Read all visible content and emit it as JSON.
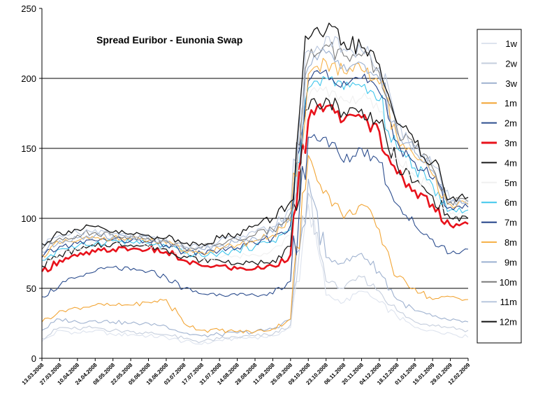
{
  "chart_data": {
    "type": "line",
    "title": "Spread Euribor - Eunonia Swap",
    "xlabel": "",
    "ylabel": "",
    "ylim": [
      0,
      250
    ],
    "y_ticks": [
      0,
      50,
      100,
      150,
      200,
      250
    ],
    "grid": "horizontal lines at 50, 100, 150, 200",
    "legend_position": "right",
    "x_tick_labels": [
      "13.03.2008",
      "27.03.2008",
      "10.04.2008",
      "24.04.2008",
      "08.05.2008",
      "22.05.2008",
      "05.06.2008",
      "19.06.2008",
      "03.07.2008",
      "17.07.2008",
      "31.07.2008",
      "14.08.2008",
      "28.08.2008",
      "11.09.2008",
      "25.09.2008",
      "09.10.2008",
      "23.10.2008",
      "06.11.2008",
      "20.11.2008",
      "04.12.2008",
      "18.12.2008",
      "01.01.2009",
      "15.01.2009",
      "29.01.2009",
      "12.02.2009"
    ],
    "x": [
      0,
      1,
      2,
      3,
      4,
      5,
      6,
      7,
      8,
      9,
      10,
      11,
      12,
      13,
      14,
      15,
      16,
      17,
      18,
      19,
      20,
      21,
      22,
      23,
      24
    ],
    "series": [
      {
        "name": "1w",
        "color": "#dde3ee",
        "values": [
          12,
          20,
          18,
          20,
          17,
          17,
          16,
          15,
          12,
          10,
          13,
          14,
          15,
          16,
          22,
          110,
          45,
          40,
          48,
          40,
          30,
          22,
          20,
          18,
          15
        ]
      },
      {
        "name": "2w",
        "color": "#c5cedd",
        "values": [
          14,
          22,
          21,
          22,
          20,
          19,
          18,
          17,
          14,
          12,
          14,
          15,
          16,
          17,
          24,
          118,
          55,
          50,
          58,
          48,
          34,
          26,
          24,
          22,
          20
        ]
      },
      {
        "name": "3w",
        "color": "#9eb1cf",
        "values": [
          20,
          28,
          26,
          27,
          26,
          25,
          25,
          23,
          18,
          16,
          17,
          18,
          19,
          21,
          28,
          128,
          72,
          68,
          75,
          62,
          42,
          34,
          30,
          27,
          26
        ]
      },
      {
        "name": "1m",
        "color": "#f2a535",
        "values": [
          26,
          34,
          36,
          38,
          38,
          38,
          40,
          42,
          25,
          20,
          20,
          19,
          19,
          21,
          28,
          145,
          120,
          100,
          110,
          92,
          58,
          50,
          42,
          44,
          42
        ]
      },
      {
        "name": "2m",
        "color": "#2c4d8e",
        "values": [
          44,
          52,
          58,
          62,
          65,
          63,
          62,
          58,
          50,
          46,
          46,
          45,
          45,
          46,
          55,
          158,
          158,
          140,
          150,
          140,
          110,
          95,
          85,
          75,
          78
        ]
      },
      {
        "name": "3m",
        "color": "#e8121b",
        "values": [
          62,
          70,
          73,
          76,
          78,
          78,
          78,
          76,
          70,
          66,
          66,
          64,
          64,
          66,
          74,
          170,
          180,
          170,
          172,
          162,
          132,
          120,
          110,
          95,
          96
        ]
      },
      {
        "name": "4m",
        "color": "#1a1a1a",
        "values": [
          66,
          74,
          77,
          80,
          82,
          81,
          80,
          78,
          73,
          70,
          70,
          68,
          68,
          70,
          80,
          178,
          186,
          176,
          178,
          168,
          138,
          126,
          116,
          100,
          100
        ]
      },
      {
        "name": "5m",
        "color": "#f0f0f0",
        "values": [
          68,
          76,
          79,
          82,
          83,
          82,
          81,
          79,
          74,
          71,
          72,
          73,
          74,
          78,
          88,
          186,
          194,
          184,
          186,
          176,
          144,
          130,
          120,
          103,
          104
        ]
      },
      {
        "name": "6m",
        "color": "#3ec6ec",
        "values": [
          70,
          78,
          80,
          82,
          84,
          83,
          82,
          80,
          75,
          73,
          75,
          77,
          80,
          84,
          92,
          193,
          200,
          192,
          194,
          184,
          150,
          136,
          124,
          106,
          106
        ]
      },
      {
        "name": "7m",
        "color": "#1f3e86",
        "values": [
          72,
          80,
          82,
          84,
          85,
          84,
          83,
          81,
          76,
          75,
          77,
          79,
          82,
          86,
          95,
          198,
          206,
          198,
          200,
          190,
          155,
          140,
          128,
          108,
          108
        ]
      },
      {
        "name": "8m",
        "color": "#f6b24a",
        "values": [
          74,
          82,
          84,
          86,
          86,
          85,
          84,
          82,
          77,
          76,
          78,
          81,
          84,
          88,
          98,
          203,
          212,
          204,
          206,
          196,
          158,
          144,
          131,
          110,
          110
        ]
      },
      {
        "name": "9m",
        "color": "#9bb0d0",
        "values": [
          76,
          84,
          86,
          88,
          87,
          86,
          85,
          83,
          78,
          78,
          80,
          83,
          86,
          90,
          101,
          208,
          218,
          210,
          211,
          200,
          161,
          147,
          134,
          111,
          111
        ]
      },
      {
        "name": "10m",
        "color": "#7a7a7a",
        "values": [
          78,
          86,
          88,
          90,
          88,
          87,
          86,
          84,
          79,
          79,
          82,
          85,
          88,
          92,
          104,
          214,
          224,
          216,
          216,
          204,
          164,
          150,
          136,
          112,
          112
        ]
      },
      {
        "name": "11m",
        "color": "#b9c7de",
        "values": [
          80,
          88,
          90,
          92,
          89,
          88,
          87,
          85,
          80,
          80,
          84,
          87,
          90,
          94,
          107,
          220,
          230,
          221,
          220,
          208,
          166,
          152,
          138,
          113,
          113
        ]
      },
      {
        "name": "12m",
        "color": "#111111",
        "values": [
          82,
          90,
          92,
          94,
          90,
          89,
          88,
          86,
          82,
          82,
          86,
          89,
          95,
          100,
          112,
          228,
          234,
          226,
          222,
          210,
          168,
          154,
          140,
          114,
          115
        ]
      }
    ]
  }
}
